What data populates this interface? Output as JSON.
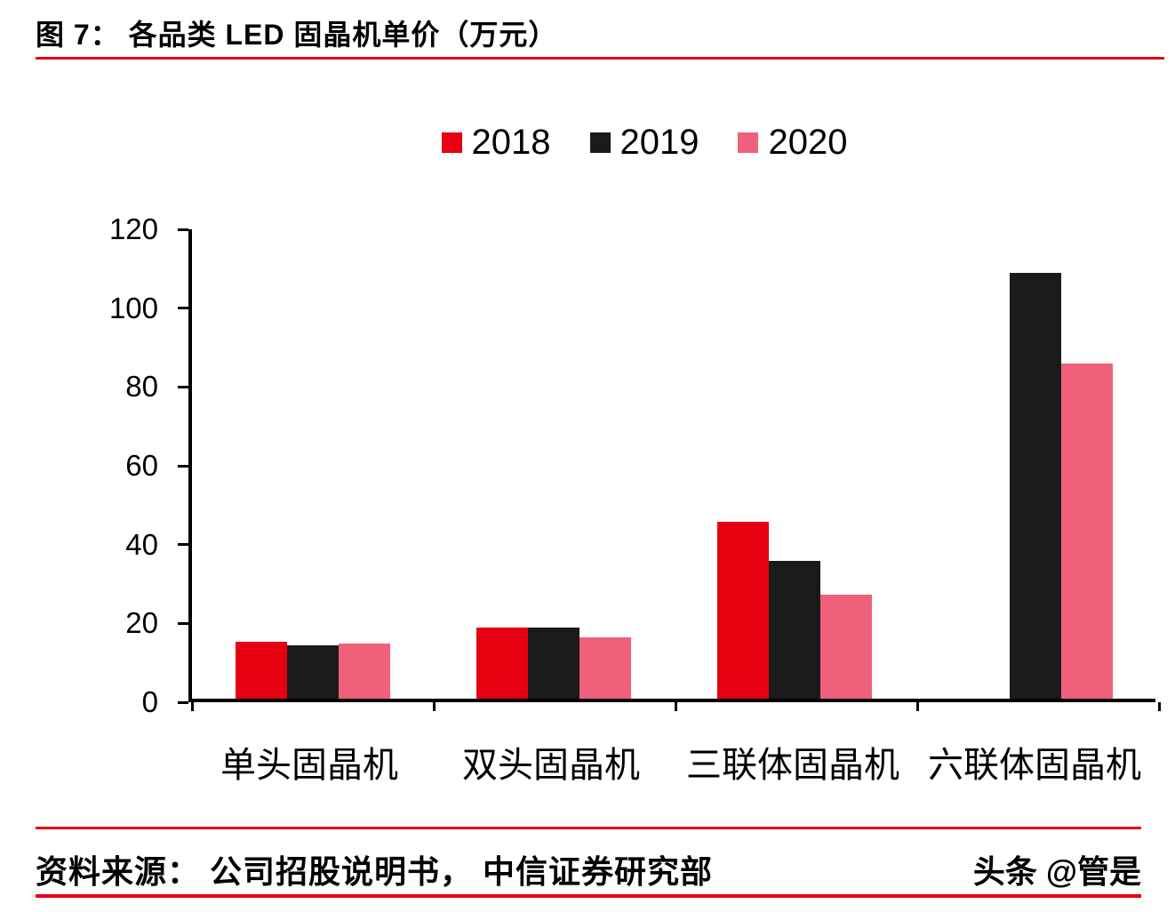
{
  "header": {
    "title": "图 7：  各品类 LED 固晶机单价（万元）"
  },
  "chart_data": {
    "type": "bar",
    "categories": [
      "单头固晶机",
      "双头固晶机",
      "三联体固晶机",
      "六联体固晶机"
    ],
    "series": [
      {
        "name": "2018",
        "color": "#e60012",
        "values": [
          14.5,
          18,
          45,
          null
        ]
      },
      {
        "name": "2019",
        "color": "#1a1a1a",
        "values": [
          13.5,
          18,
          35,
          108
        ]
      },
      {
        "name": "2020",
        "color": "#ef617a",
        "values": [
          14,
          15.5,
          26.5,
          85
        ]
      }
    ],
    "title": "各品类 LED 固晶机单价（万元）",
    "xlabel": "",
    "ylabel": "",
    "ylim": [
      0,
      120
    ],
    "yticks": [
      0,
      20,
      40,
      60,
      80,
      100,
      120
    ],
    "grid": false,
    "legend_position": "top-center"
  },
  "footer": {
    "source": "资料来源：  公司招股说明书，  中信证券研究部",
    "watermark": "头条 @管是"
  },
  "colors": {
    "accent": "#e60012",
    "series_2018": "#e60012",
    "series_2019": "#1a1a1a",
    "series_2020": "#ef617a",
    "text": "#000000",
    "background": "#ffffff"
  }
}
